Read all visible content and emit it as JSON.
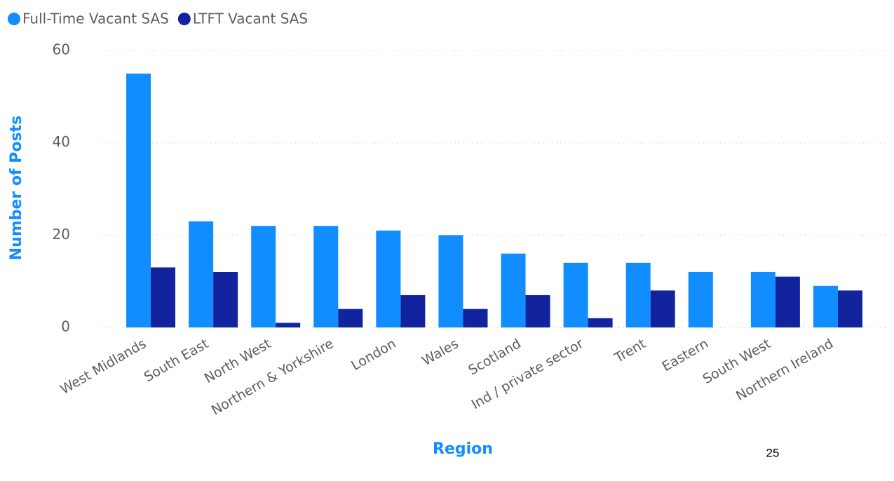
{
  "chart_data": {
    "type": "bar",
    "categories": [
      "West Midlands",
      "South East",
      "North West",
      "Northern & Yorkshire",
      "London",
      "Wales",
      "Scotland",
      "Ind / private sector",
      "Trent",
      "Eastern",
      "South West",
      "Northern Ireland"
    ],
    "series": [
      {
        "name": "Full-Time Vacant SAS",
        "color": "#118dff",
        "values": [
          55,
          23,
          22,
          22,
          21,
          20,
          16,
          14,
          14,
          12,
          12,
          9
        ]
      },
      {
        "name": "LTFT Vacant SAS",
        "color": "#12239e",
        "values": [
          13,
          12,
          1,
          4,
          7,
          4,
          7,
          2,
          8,
          0,
          11,
          8
        ]
      }
    ],
    "xlabel": "Region",
    "ylabel": "Number of Posts",
    "ylim": [
      0,
      60
    ],
    "yticks": [
      0,
      20,
      40,
      60
    ],
    "grid": true,
    "legend": "top-left",
    "page_number": "25"
  }
}
